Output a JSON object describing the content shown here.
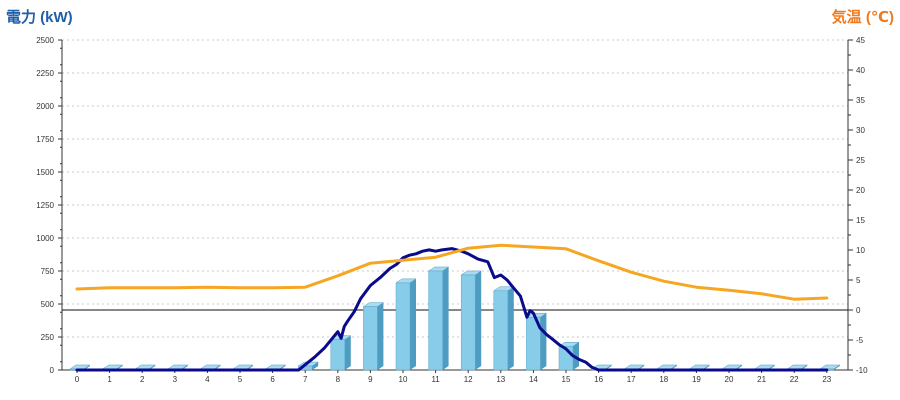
{
  "chart_data": {
    "type": "bar",
    "left_axis_title": "電力 (kW)",
    "right_axis_title": "気温 (℃)",
    "categories": [
      "0",
      "1",
      "2",
      "3",
      "4",
      "5",
      "6",
      "7",
      "8",
      "9",
      "10",
      "11",
      "12",
      "13",
      "14",
      "15",
      "16",
      "17",
      "18",
      "19",
      "20",
      "21",
      "22",
      "23"
    ],
    "y_left": {
      "min": 0,
      "max": 2500,
      "ticks": [
        "0",
        "250",
        "500",
        "750",
        "1000",
        "1250",
        "1500",
        "1750",
        "2000",
        "2250",
        "2500"
      ]
    },
    "y_right": {
      "min": -10,
      "max": 45,
      "ticks": [
        "-10",
        "-5",
        "0",
        "5",
        "10",
        "15",
        "20",
        "25",
        "30",
        "35",
        "40",
        "45"
      ]
    },
    "grid": true,
    "series": [
      {
        "axis": "left",
        "kind": "bar",
        "color": "#87cce8",
        "shade": "#4f9cc1",
        "values": [
          0,
          0,
          0,
          0,
          0,
          0,
          0,
          30,
          230,
          480,
          660,
          750,
          720,
          600,
          400,
          180,
          0,
          0,
          0,
          0,
          0,
          0,
          0,
          0
        ]
      },
      {
        "axis": "left",
        "kind": "line",
        "color": "#0a0a8c",
        "x": [
          0,
          1,
          2,
          3,
          4,
          5,
          6,
          6.8,
          7,
          7.3,
          7.6,
          7.9,
          8,
          8.1,
          8.2,
          8.3,
          8.5,
          8.7,
          9,
          9.3,
          9.6,
          9.8,
          10,
          10.2,
          10.4,
          10.6,
          10.8,
          11,
          11.2,
          11.5,
          11.8,
          12,
          12.3,
          12.6,
          12.8,
          13,
          13.2,
          13.4,
          13.6,
          13.8,
          13.9,
          14,
          14.2,
          14.4,
          14.6,
          14.8,
          15,
          15.2,
          15.4,
          15.6,
          15.8,
          16,
          17,
          18,
          19,
          20,
          21,
          22,
          23
        ],
        "values": [
          0,
          0,
          0,
          0,
          0,
          0,
          0,
          0,
          40,
          100,
          170,
          260,
          290,
          240,
          330,
          370,
          440,
          540,
          640,
          700,
          770,
          800,
          850,
          870,
          880,
          900,
          910,
          900,
          910,
          920,
          900,
          880,
          840,
          820,
          700,
          720,
          680,
          620,
          560,
          400,
          450,
          430,
          320,
          270,
          230,
          190,
          160,
          110,
          80,
          60,
          20,
          0,
          0,
          0,
          0,
          0,
          0,
          0,
          0
        ]
      },
      {
        "axis": "right",
        "kind": "line",
        "color": "#f5a623",
        "x": [
          0,
          1,
          2,
          3,
          4,
          5,
          6,
          7,
          8,
          9,
          10,
          11,
          12,
          13,
          14,
          15,
          16,
          17,
          18,
          19,
          20,
          21,
          22,
          23
        ],
        "values": [
          3.5,
          3.7,
          3.7,
          3.7,
          3.8,
          3.7,
          3.7,
          3.8,
          5.7,
          7.8,
          8.3,
          8.8,
          10.3,
          10.8,
          10.5,
          10.2,
          8.2,
          6.3,
          4.8,
          3.8,
          3.3,
          2.7,
          1.8,
          2.0
        ]
      }
    ],
    "reference_line": {
      "axis": "right",
      "value": 0
    }
  }
}
